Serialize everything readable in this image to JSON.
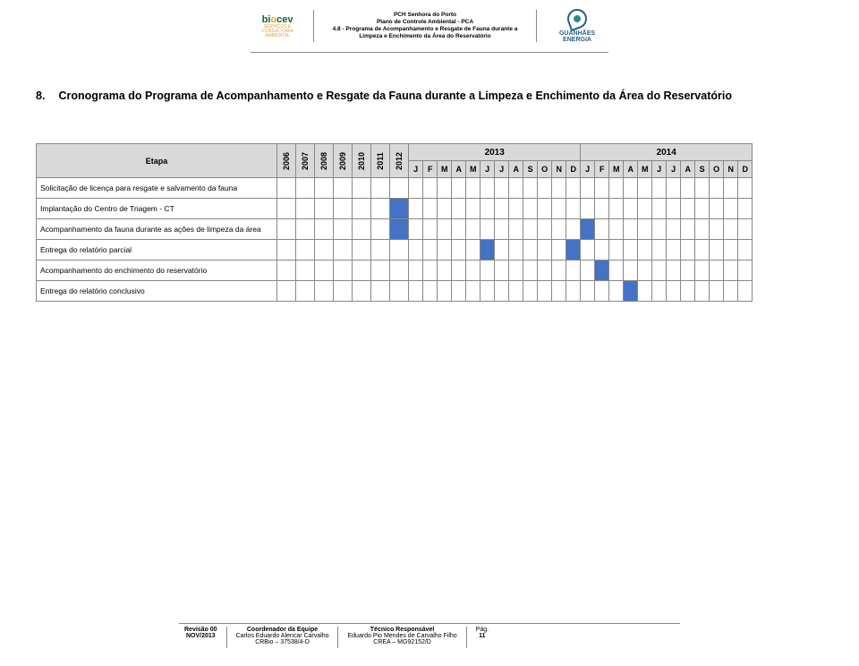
{
  "header": {
    "logo_left": {
      "name": "biocev",
      "sub": "SERVIÇOS E CONSULTORIA AMBIENTAL"
    },
    "line1": "PCH Senhora do Porto",
    "line2": "Plano de Controle Ambiental - PCA",
    "line3": "4.8 - Programa de Acompanhamento e Resgate de Fauna durante a Limpeza e Enchimento da Área do Reservatório",
    "logo_right": "GUANHÃES ENERGIA"
  },
  "section": {
    "num": "8.",
    "text": "Cronograma do Programa de Acompanhamento e Resgate da Fauna durante a Limpeza e Enchimento da Área do Reservatório"
  },
  "gantt": {
    "etapa_header": "Etapa",
    "year_cols": [
      "2006",
      "2007",
      "2008",
      "2009",
      "2010",
      "2011",
      "2012"
    ],
    "span_years": [
      "2013",
      "2014"
    ],
    "months": [
      "J",
      "F",
      "M",
      "A",
      "M",
      "J",
      "J",
      "A",
      "S",
      "O",
      "N",
      "D",
      "J",
      "F",
      "M",
      "A",
      "M",
      "J",
      "J",
      "A",
      "S",
      "O",
      "N",
      "D"
    ],
    "rows": [
      {
        "label": "Solicitação de licença para resgate e salvamento da fauna",
        "years_fill": [
          false,
          false,
          false,
          false,
          false,
          false,
          false
        ],
        "months_fill": [
          false,
          false,
          false,
          false,
          false,
          false,
          false,
          false,
          false,
          false,
          false,
          false,
          false,
          false,
          false,
          false,
          false,
          false,
          false,
          false,
          false,
          false,
          false,
          false
        ]
      },
      {
        "label": "Implantação do Centro de Triagem - CT",
        "years_fill": [
          false,
          false,
          false,
          false,
          false,
          false,
          true
        ],
        "months_fill": [
          false,
          false,
          false,
          false,
          false,
          false,
          false,
          false,
          false,
          false,
          false,
          false,
          false,
          false,
          false,
          false,
          false,
          false,
          false,
          false,
          false,
          false,
          false,
          false
        ]
      },
      {
        "label": "Acompanhamento da fauna durante as ações de limpeza da área",
        "years_fill": [
          false,
          false,
          false,
          false,
          false,
          false,
          true
        ],
        "months_fill": [
          false,
          false,
          false,
          false,
          false,
          false,
          false,
          false,
          false,
          false,
          false,
          false,
          true,
          false,
          false,
          false,
          false,
          false,
          false,
          false,
          false,
          false,
          false,
          false
        ]
      },
      {
        "label": "Entrega do relatório parcial",
        "years_fill": [
          false,
          false,
          false,
          false,
          false,
          false,
          false
        ],
        "months_fill": [
          false,
          false,
          false,
          false,
          false,
          true,
          false,
          false,
          false,
          false,
          false,
          true,
          false,
          false,
          false,
          false,
          false,
          false,
          false,
          false,
          false,
          false,
          false,
          false
        ]
      },
      {
        "label": "Acompanhamento do enchimento do reservatório",
        "years_fill": [
          false,
          false,
          false,
          false,
          false,
          false,
          false
        ],
        "months_fill": [
          false,
          false,
          false,
          false,
          false,
          false,
          false,
          false,
          false,
          false,
          false,
          false,
          false,
          true,
          false,
          false,
          false,
          false,
          false,
          false,
          false,
          false,
          false,
          false
        ]
      },
      {
        "label": "Entrega do relatório conclusivo",
        "years_fill": [
          false,
          false,
          false,
          false,
          false,
          false,
          false
        ],
        "months_fill": [
          false,
          false,
          false,
          false,
          false,
          false,
          false,
          false,
          false,
          false,
          false,
          false,
          false,
          false,
          false,
          true,
          false,
          false,
          false,
          false,
          false,
          false,
          false,
          false
        ]
      }
    ],
    "fill_color": "#4472c4",
    "header_bg": "#d9d9d9",
    "border_color": "#888888"
  },
  "footer": {
    "rev_label": "Revisão 00",
    "rev_date": "NOV/2013",
    "coord_label": "Coordenador da Equipe",
    "coord_name": "Carlos Eduardo Alencar Carvalho",
    "coord_reg": "CRBio – 37538/4-D",
    "tech_label": "Técnico Responsável",
    "tech_name": "Eduardo Pio Mendes de Carvalho Filho",
    "tech_reg": "CREA – MG92152/D",
    "page_label": "Pág.",
    "page_num": "11"
  }
}
